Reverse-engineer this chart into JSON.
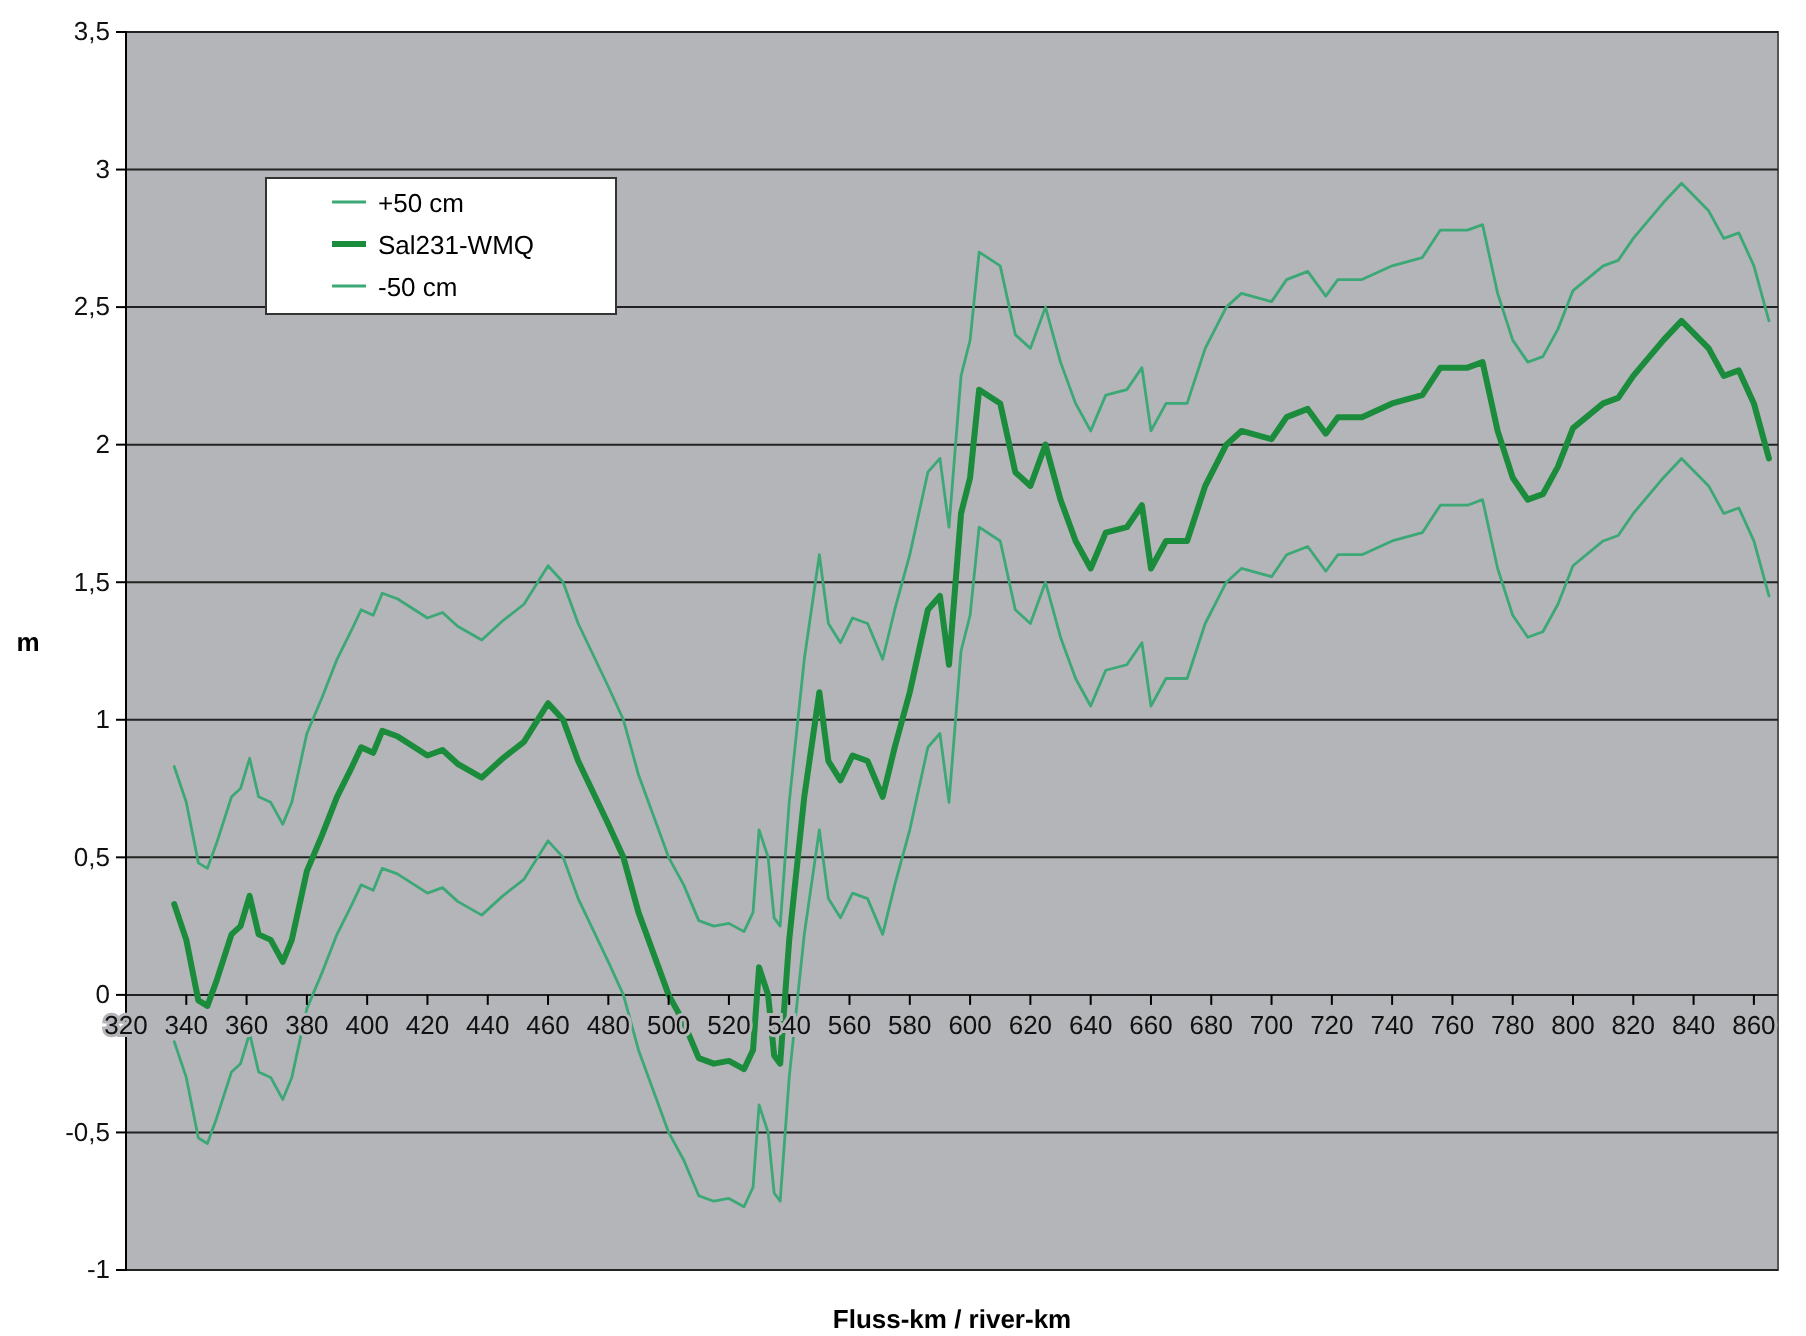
{
  "chart_data": {
    "type": "line",
    "xlabel": "Fluss-km / river-km",
    "ylabel": "m",
    "x": [
      336,
      340,
      344,
      347,
      350,
      355,
      358,
      361,
      364,
      368,
      372,
      375,
      380,
      385,
      390,
      395,
      398,
      402,
      405,
      410,
      420,
      425,
      430,
      438,
      445,
      452,
      460,
      465,
      470,
      480,
      485,
      490,
      500,
      505,
      510,
      515,
      520,
      525,
      528,
      530,
      533,
      535,
      537,
      540,
      545,
      550,
      553,
      557,
      561,
      566,
      571,
      575,
      580,
      586,
      590,
      593,
      597,
      600,
      603,
      610,
      615,
      620,
      625,
      630,
      635,
      640,
      645,
      652,
      657,
      660,
      665,
      672,
      678,
      685,
      690,
      700,
      705,
      712,
      718,
      722,
      730,
      740,
      750,
      756,
      765,
      770,
      775,
      780,
      785,
      790,
      795,
      800,
      810,
      815,
      820,
      830,
      836,
      845,
      850,
      855,
      860,
      865
    ],
    "series": [
      {
        "name": "+50 cm",
        "color": "#3ba876",
        "values": [
          0.83,
          0.7,
          0.48,
          0.46,
          0.55,
          0.72,
          0.75,
          0.86,
          0.72,
          0.7,
          0.62,
          0.7,
          0.95,
          1.08,
          1.22,
          1.33,
          1.4,
          1.38,
          1.46,
          1.44,
          1.37,
          1.39,
          1.34,
          1.29,
          1.36,
          1.42,
          1.56,
          1.5,
          1.35,
          1.12,
          1,
          0.8,
          0.5,
          0.4,
          0.27,
          0.25,
          0.26,
          0.23,
          0.3,
          0.6,
          0.5,
          0.28,
          0.25,
          0.7,
          1.22,
          1.6,
          1.35,
          1.28,
          1.37,
          1.35,
          1.22,
          1.4,
          1.6,
          1.9,
          1.95,
          1.7,
          2.25,
          2.38,
          2.7,
          2.65,
          2.4,
          2.35,
          2.5,
          2.3,
          2.15,
          2.05,
          2.18,
          2.2,
          2.28,
          2.05,
          2.15,
          2.15,
          2.35,
          2.5,
          2.55,
          2.52,
          2.6,
          2.63,
          2.54,
          2.6,
          2.6,
          2.65,
          2.68,
          2.78,
          2.78,
          2.8,
          2.55,
          2.38,
          2.3,
          2.32,
          2.42,
          2.56,
          2.65,
          2.67,
          2.75,
          2.88,
          2.95,
          2.85,
          2.75,
          2.77,
          2.65,
          2.45
        ]
      },
      {
        "name": "Sal231-WMQ",
        "color": "#1a8c3c",
        "values": [
          0.33,
          0.2,
          -0.02,
          -0.04,
          0.05,
          0.22,
          0.25,
          0.36,
          0.22,
          0.2,
          0.12,
          0.2,
          0.45,
          0.58,
          0.72,
          0.83,
          0.9,
          0.88,
          0.96,
          0.94,
          0.87,
          0.89,
          0.84,
          0.79,
          0.86,
          0.92,
          1.06,
          1,
          0.85,
          0.62,
          0.5,
          0.3,
          0,
          -0.1,
          -0.23,
          -0.25,
          -0.24,
          -0.27,
          -0.2,
          0.1,
          0,
          -0.22,
          -0.25,
          0.2,
          0.72,
          1.1,
          0.85,
          0.78,
          0.87,
          0.85,
          0.72,
          0.9,
          1.1,
          1.4,
          1.45,
          1.2,
          1.75,
          1.88,
          2.2,
          2.15,
          1.9,
          1.85,
          2,
          1.8,
          1.65,
          1.55,
          1.68,
          1.7,
          1.78,
          1.55,
          1.65,
          1.65,
          1.85,
          2,
          2.05,
          2.02,
          2.1,
          2.13,
          2.04,
          2.1,
          2.1,
          2.15,
          2.18,
          2.28,
          2.28,
          2.3,
          2.05,
          1.88,
          1.8,
          1.82,
          1.92,
          2.06,
          2.15,
          2.17,
          2.25,
          2.38,
          2.45,
          2.35,
          2.25,
          2.27,
          2.15,
          1.95
        ]
      },
      {
        "name": "-50 cm",
        "color": "#3ba876",
        "values": [
          -0.17,
          -0.3,
          -0.52,
          -0.54,
          -0.45,
          -0.28,
          -0.25,
          -0.14,
          -0.28,
          -0.3,
          -0.38,
          -0.3,
          -0.05,
          0.08,
          0.22,
          0.33,
          0.4,
          0.38,
          0.46,
          0.44,
          0.37,
          0.39,
          0.34,
          0.29,
          0.36,
          0.42,
          0.56,
          0.5,
          0.35,
          0.12,
          0,
          -0.2,
          -0.5,
          -0.6,
          -0.73,
          -0.75,
          -0.74,
          -0.77,
          -0.7,
          -0.4,
          -0.5,
          -0.72,
          -0.75,
          -0.3,
          0.22,
          0.6,
          0.35,
          0.28,
          0.37,
          0.35,
          0.22,
          0.4,
          0.6,
          0.9,
          0.95,
          0.7,
          1.25,
          1.38,
          1.7,
          1.65,
          1.4,
          1.35,
          1.5,
          1.3,
          1.15,
          1.05,
          1.18,
          1.2,
          1.28,
          1.05,
          1.15,
          1.15,
          1.35,
          1.5,
          1.55,
          1.52,
          1.6,
          1.63,
          1.54,
          1.6,
          1.6,
          1.65,
          1.68,
          1.78,
          1.78,
          1.8,
          1.55,
          1.38,
          1.3,
          1.32,
          1.42,
          1.56,
          1.65,
          1.67,
          1.75,
          1.88,
          1.95,
          1.85,
          1.75,
          1.77,
          1.65,
          1.45
        ]
      }
    ],
    "xlim": [
      320,
      868
    ],
    "xticks": [
      320,
      340,
      360,
      380,
      400,
      420,
      440,
      460,
      480,
      500,
      520,
      540,
      560,
      580,
      600,
      620,
      640,
      660,
      680,
      700,
      720,
      740,
      760,
      780,
      800,
      820,
      840,
      860
    ],
    "ylim": [
      -1,
      3.5
    ],
    "yticks": [
      {
        "value": -1,
        "label": "-1"
      },
      {
        "value": -0.5,
        "label": "-0,5"
      },
      {
        "value": 0,
        "label": "0"
      },
      {
        "value": 0.5,
        "label": "0,5"
      },
      {
        "value": 1,
        "label": "1"
      },
      {
        "value": 1.5,
        "label": "1,5"
      },
      {
        "value": 2,
        "label": "2"
      },
      {
        "value": 2.5,
        "label": "2,5"
      },
      {
        "value": 3,
        "label": "3"
      },
      {
        "value": 3.5,
        "label": "3,5"
      }
    ],
    "grid": "y",
    "legend": "top left",
    "marker": "none",
    "line_style": "solid"
  }
}
